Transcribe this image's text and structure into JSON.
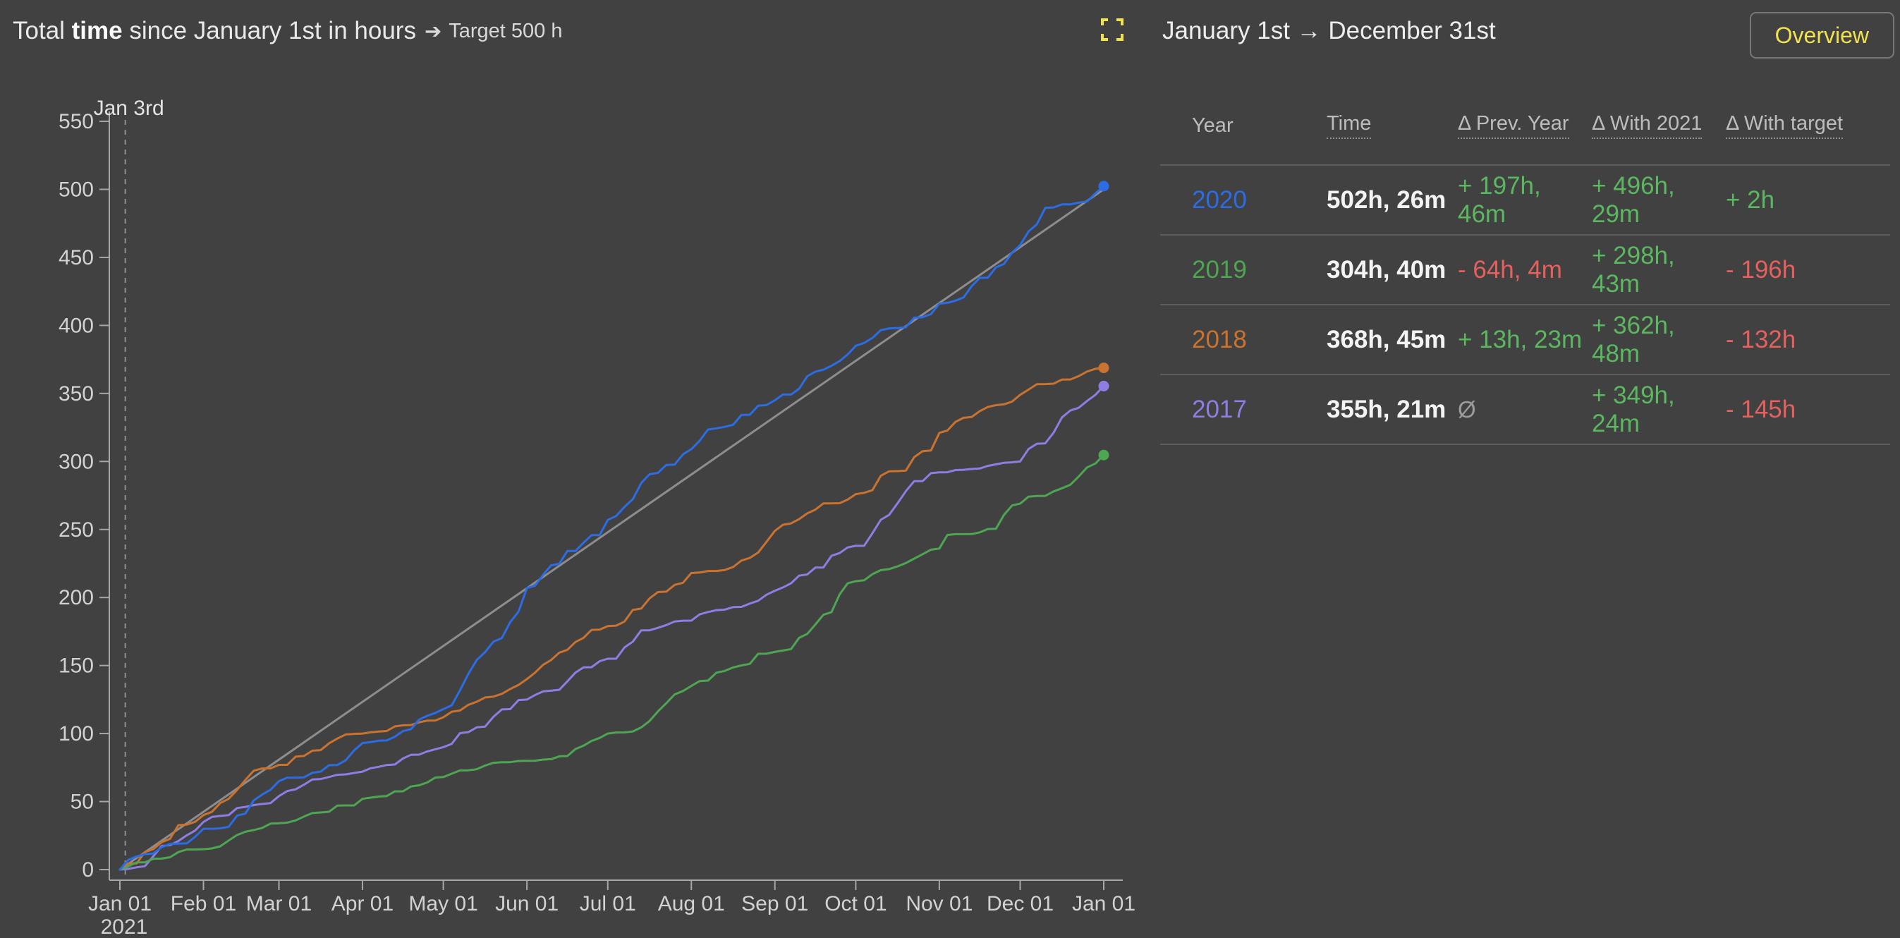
{
  "left_panel": {
    "title": {
      "prefix": "Total ",
      "bold": "time",
      "rest": " since January 1st in hours",
      "arrow": "➔",
      "target_label": "Target 500 h"
    },
    "fullscreen_icon": "corner-brackets",
    "accent_yellow": "#f1e24f"
  },
  "right_panel": {
    "date_range": "January 1st → December 31st",
    "overview_button": "Overview"
  },
  "table": {
    "columns": [
      {
        "label": "Year",
        "underlined": false
      },
      {
        "label": "Time",
        "underlined": true
      },
      {
        "label": "Δ Prev. Year",
        "underlined": true
      },
      {
        "label": "Δ With 2021",
        "underlined": true
      },
      {
        "label": "Δ With target",
        "underlined": true
      }
    ],
    "rows": [
      {
        "year": "2020",
        "color": "#2c6ce5",
        "time": "502h, 26m",
        "delta_prev_year": "+ 197h, 46m",
        "delta_with_2021": "+ 496h, 29m",
        "delta_with_target": "+ 2h"
      },
      {
        "year": "2019",
        "color": "#4ea653",
        "time": "304h, 40m",
        "delta_prev_year": "- 64h, 4m",
        "delta_with_2021": "+ 298h, 43m",
        "delta_with_target": "- 196h"
      },
      {
        "year": "2018",
        "color": "#ca7330",
        "time": "368h, 45m",
        "delta_prev_year": "+ 13h, 23m",
        "delta_with_2021": "+ 362h, 48m",
        "delta_with_target": "- 132h"
      },
      {
        "year": "2017",
        "color": "#8d7ee4",
        "time": "355h, 21m",
        "delta_prev_year": "Ø",
        "delta_with_2021": "+ 349h, 24m",
        "delta_with_target": "- 145h"
      }
    ]
  },
  "chart_data": {
    "type": "line",
    "title": "Total time since January 1st in hours ➔ Target 500 h",
    "x_axis": {
      "tick_labels": [
        "Jan 01",
        "Feb 01",
        "Mar 01",
        "Apr 01",
        "May 01",
        "Jun 01",
        "Jul 01",
        "Aug 01",
        "Sep 01",
        "Oct 01",
        "Nov 01",
        "Dec 01",
        "Jan 01"
      ],
      "tick_days": [
        0,
        31,
        59,
        90,
        120,
        151,
        181,
        212,
        243,
        273,
        304,
        334,
        365
      ],
      "first_tick_sub_label": "2021"
    },
    "y_axis": {
      "min": 0,
      "max": 550,
      "tick_step": 50,
      "unit": "hours"
    },
    "axis_color": "#a6a6a6",
    "label_color": "#d2d2d2",
    "annotation": {
      "label": "Jan 3rd",
      "day": 2,
      "color": "#8f8f8f",
      "label_color": "#e3e3e3"
    },
    "target_line": {
      "name": "Target 500 h",
      "start_hours": 0,
      "end_hours": 500,
      "color": "#8d8d8d"
    },
    "series": [
      {
        "name": "2020",
        "color": "#2c6ce5",
        "end_label": "502h, 26m",
        "anchor_days": [
          0,
          31,
          59,
          90,
          120,
          151,
          181,
          212,
          243,
          273,
          304,
          334,
          365
        ],
        "cumulative_hours": [
          0,
          30,
          65,
          93,
          118,
          207,
          257,
          309,
          345,
          385,
          416,
          459,
          502.4
        ]
      },
      {
        "name": "2019",
        "color": "#4ea653",
        "end_label": "304h, 40m",
        "anchor_days": [
          0,
          31,
          59,
          90,
          120,
          151,
          181,
          212,
          243,
          273,
          304,
          334,
          365
        ],
        "cumulative_hours": [
          0,
          15,
          34,
          52,
          68,
          80,
          100,
          135,
          160,
          212,
          236,
          269,
          304.7
        ]
      },
      {
        "name": "2018",
        "color": "#ca7330",
        "end_label": "368h, 45m",
        "anchor_days": [
          0,
          31,
          59,
          90,
          120,
          151,
          181,
          212,
          243,
          273,
          304,
          334,
          365
        ],
        "cumulative_hours": [
          0,
          40,
          77,
          100,
          112,
          140,
          179,
          218,
          249,
          276,
          321,
          349,
          368.8
        ]
      },
      {
        "name": "2017",
        "color": "#8d7ee4",
        "end_label": "355h, 21m",
        "anchor_days": [
          0,
          31,
          59,
          90,
          120,
          151,
          181,
          212,
          243,
          273,
          304,
          334,
          365
        ],
        "cumulative_hours": [
          0,
          35,
          54,
          72,
          90,
          125,
          155,
          183,
          205,
          238,
          292,
          300,
          355.4
        ]
      }
    ],
    "legend_position": "none",
    "grid": false
  }
}
